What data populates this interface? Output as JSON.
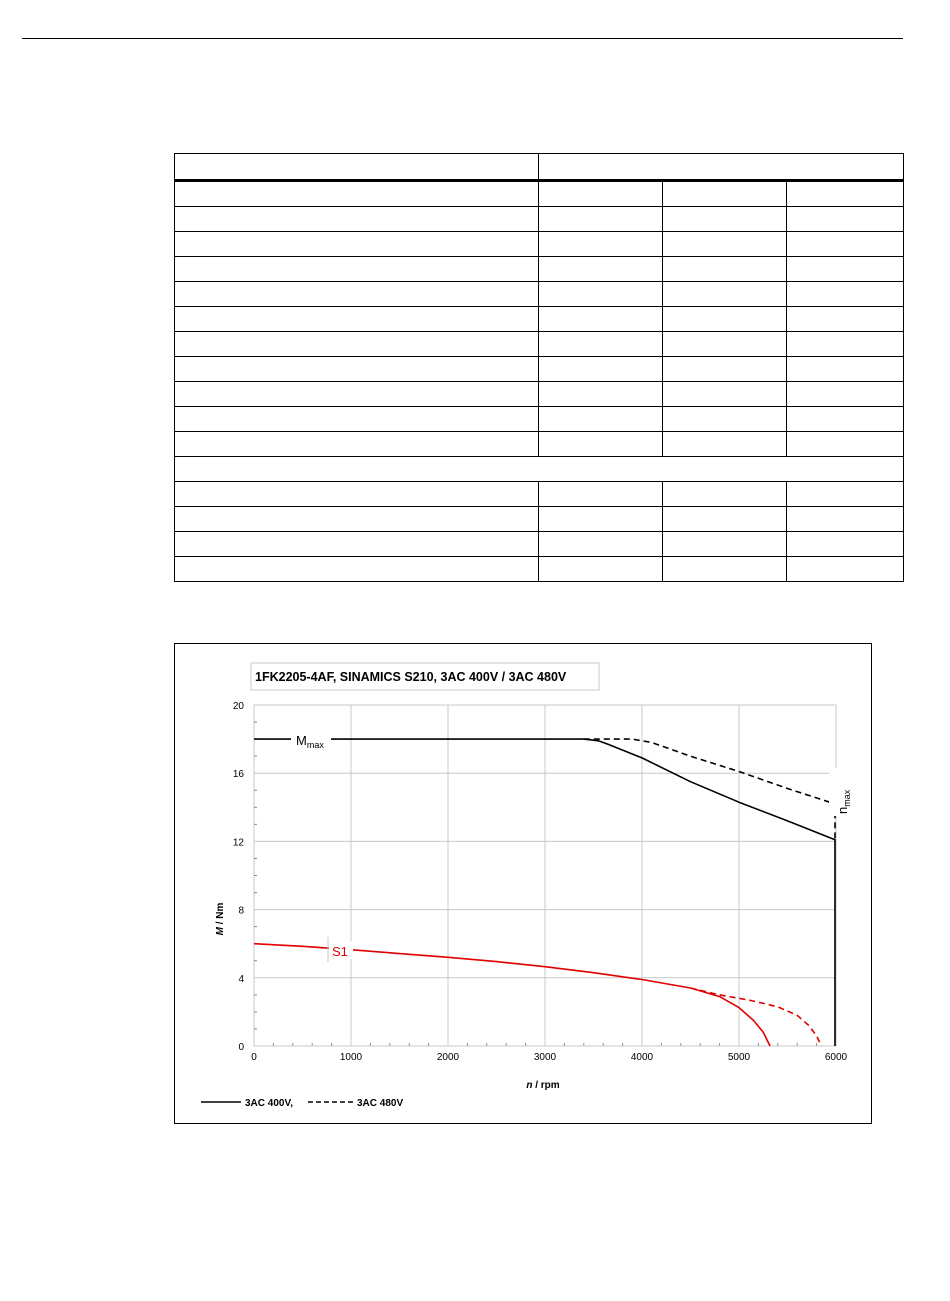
{
  "page": {
    "top_rule": true
  },
  "table": {
    "sections": [
      {
        "rows": 11
      },
      {
        "subheader": ""
      },
      {
        "rows": 4
      }
    ],
    "columns": 4
  },
  "chart_data": {
    "type": "line",
    "title": "1FK2205-4AF,  SINAMICS S210,  3AC 400V / 3AC 480V",
    "xlabel_italic": "n",
    "xlabel_rest": " / rpm",
    "ylabel_italic": "M",
    "ylabel_rest": " / Nm",
    "xlim": [
      0,
      6000
    ],
    "ylim": [
      0,
      20
    ],
    "x_ticks": [
      "0",
      "1000",
      "2000",
      "3000",
      "4000",
      "5000",
      "6000"
    ],
    "y_ticks": [
      "0",
      "4",
      "8",
      "12",
      "16",
      "20"
    ],
    "grid": true,
    "annotations": {
      "mmax_main": "M",
      "mmax_sub": "max",
      "nmax_main": "n",
      "nmax_sub": "max",
      "s1": "S1"
    },
    "legend": {
      "placement": "bottom-left",
      "solid_label": "3AC 400V,",
      "dashed_label": "3AC 480V"
    },
    "colors": {
      "mmax": "#000000",
      "s1": "#e00000",
      "grid": "#c8c8c8"
    },
    "series": [
      {
        "name": "3AC 400V",
        "curve": "Mmax",
        "style": "solid",
        "x": [
          0,
          3400,
          3550,
          3650,
          4000,
          4500,
          5000,
          5500,
          5990,
          5990
        ],
        "y": [
          18,
          18,
          17.9,
          17.7,
          16.9,
          15.5,
          14.3,
          13.2,
          12.1,
          0
        ]
      },
      {
        "name": "3AC 480V",
        "curve": "Mmax",
        "style": "dashed",
        "x": [
          3400,
          3900,
          4100,
          4500,
          5000,
          5500,
          5990,
          5990
        ],
        "y": [
          18,
          18,
          17.8,
          17.0,
          16.1,
          15.1,
          14.2,
          12.1
        ]
      },
      {
        "name": "3AC 400V",
        "curve": "S1",
        "style": "solid",
        "x": [
          0,
          500,
          1000,
          1500,
          2000,
          2500,
          3000,
          3500,
          4000,
          4500,
          4800,
          5000,
          5150,
          5250,
          5320
        ],
        "y": [
          6.0,
          5.85,
          5.65,
          5.42,
          5.2,
          4.95,
          4.65,
          4.3,
          3.9,
          3.4,
          2.9,
          2.25,
          1.5,
          0.8,
          0
        ]
      },
      {
        "name": "3AC 480V",
        "curve": "S1",
        "style": "dashed",
        "x": [
          4500,
          4800,
          5100,
          5400,
          5600,
          5720,
          5800,
          5850
        ],
        "y": [
          3.4,
          3.0,
          2.7,
          2.3,
          1.8,
          1.2,
          0.6,
          0
        ]
      }
    ]
  }
}
